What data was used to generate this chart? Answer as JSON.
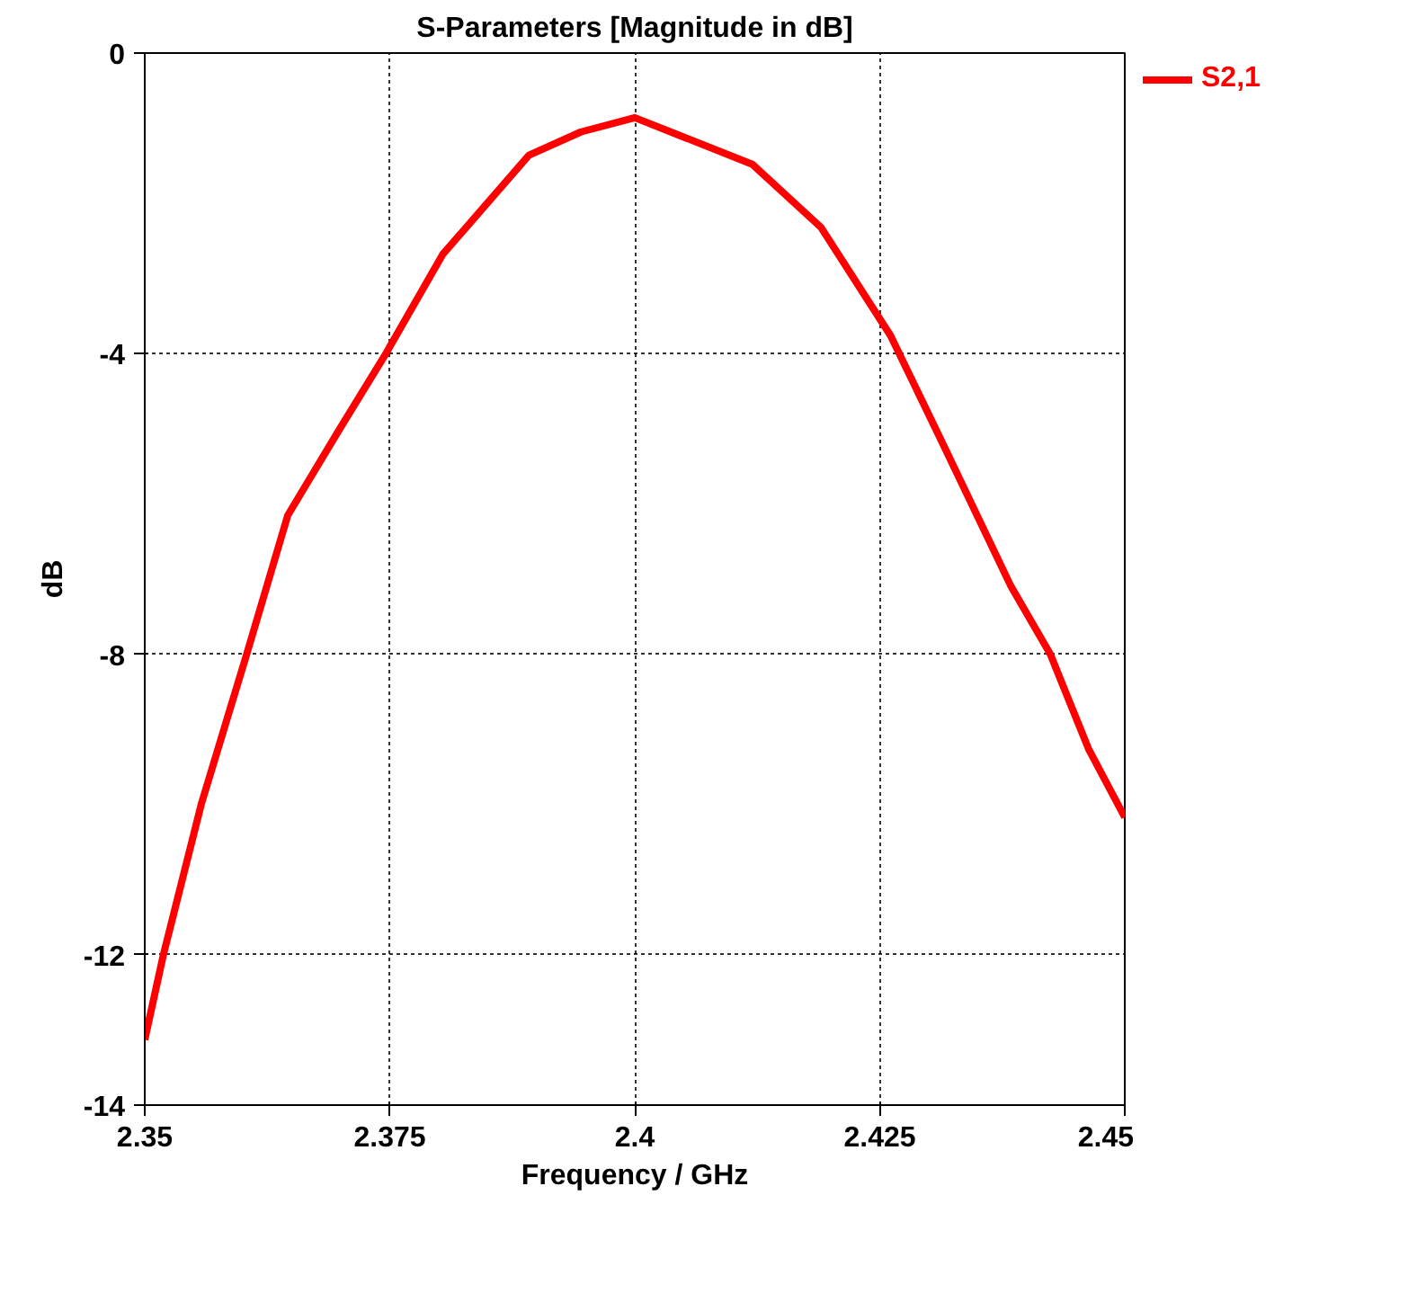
{
  "chart_data": {
    "type": "line",
    "title": "S-Parameters [Magnitude in dB]",
    "xlabel": "Frequency / GHz",
    "ylabel": "dB",
    "xlim": [
      2.35,
      2.45
    ],
    "xticks": [
      2.35,
      2.375,
      2.4,
      2.425,
      2.45
    ],
    "ylim": [
      -14,
      0
    ],
    "yticks": [
      -14,
      -12,
      -8,
      -4,
      0
    ],
    "grid": true,
    "legend": "top right",
    "line_style": "solid",
    "series": [
      {
        "name": "S2,1",
        "color": "#ff0000",
        "x": [
          2.35,
          2.3519,
          2.3558,
          2.3604,
          2.3646,
          2.3699,
          2.3746,
          2.3804,
          2.3892,
          2.3945,
          2.4,
          2.412,
          2.419,
          2.4261,
          2.4314,
          2.4384,
          2.4424,
          2.4463,
          2.45
        ],
        "values": [
          -13.13,
          -12,
          -9.98,
          -8,
          -6.15,
          -5.0,
          -4,
          -2.68,
          -1.36,
          -1.05,
          -0.86,
          -1.48,
          -2.32,
          -3.76,
          -5.19,
          -7.1,
          -8,
          -9.26,
          -10.17
        ]
      }
    ]
  }
}
